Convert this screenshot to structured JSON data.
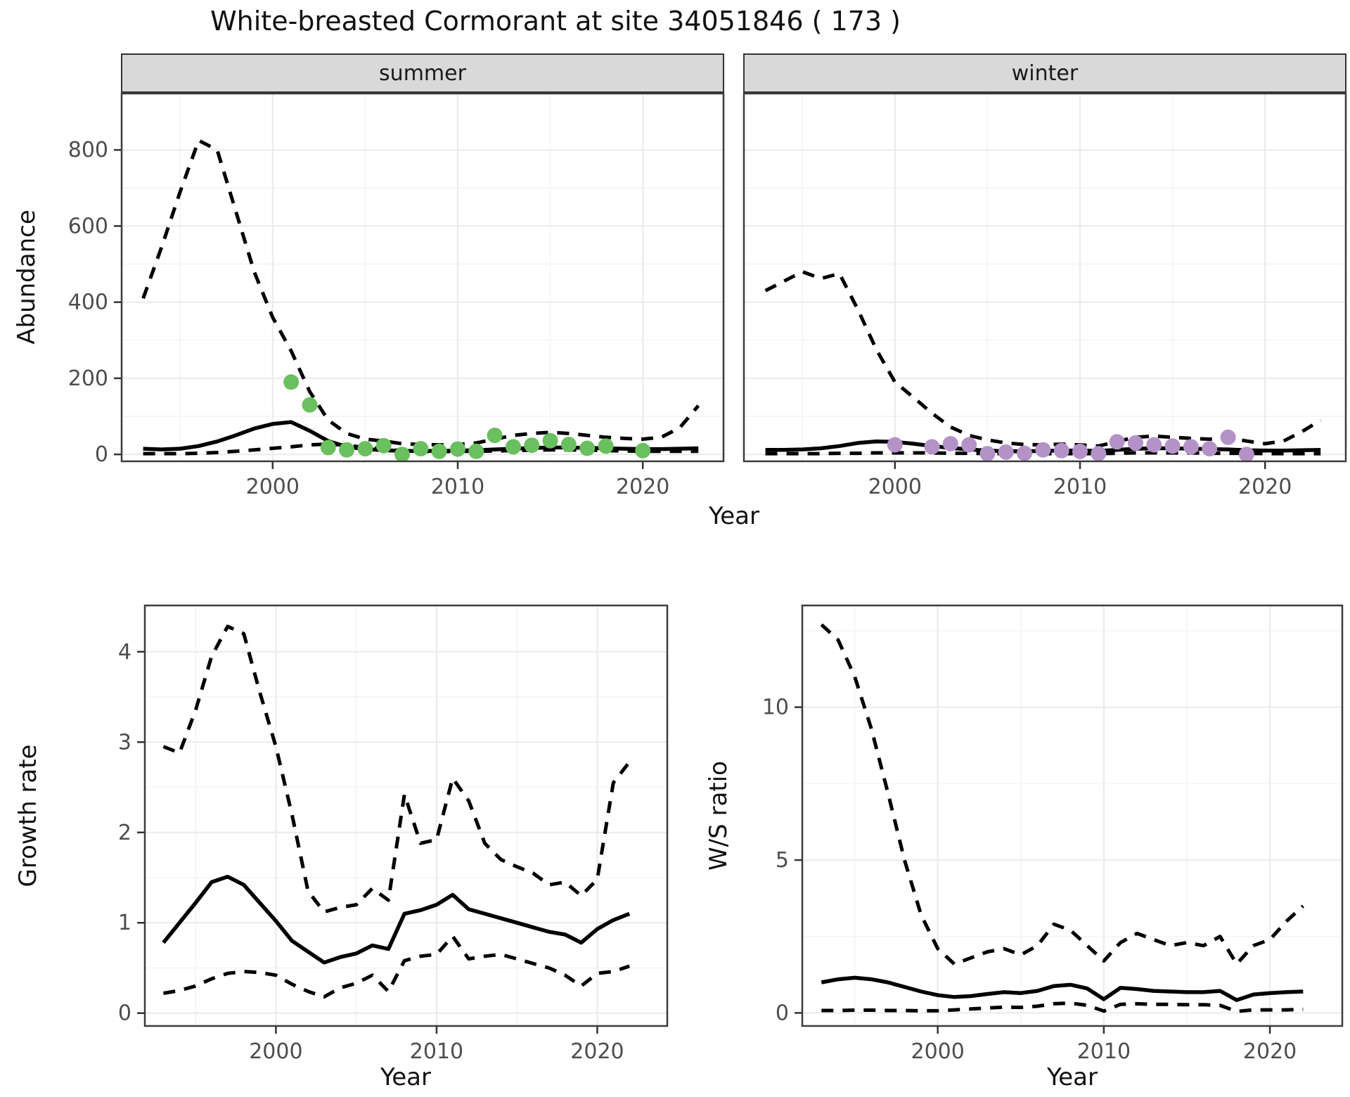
{
  "title": "White-breasted Cormorant at site 34051846 ( 173 )",
  "axis_labels": {
    "abundance": "Abundance",
    "year": "Year",
    "growth_rate": "Growth rate",
    "ws_ratio": "W/S ratio"
  },
  "facets": {
    "summer": "summer",
    "winter": "winter"
  },
  "colors": {
    "summer_points": "#6abf5e",
    "winter_points": "#b492c8",
    "line": "#000000",
    "strip_bg": "#d9d9d9",
    "grid_major": "#ebebeb",
    "grid_minor": "#f5f5f5",
    "panel_border": "#3c3c3c",
    "tick_mark": "#333333",
    "tick_text": "#4d4d4d"
  },
  "chart_data": {
    "type": "line",
    "title": "White-breasted Cormorant at site 34051846 ( 173 )",
    "panels": [
      {
        "id": "abundance_summer",
        "facet_label": "summer",
        "xlabel": "Year",
        "ylabel": "Abundance",
        "xlim": [
          1991.8,
          2024.4
        ],
        "ylim": [
          -20,
          950
        ],
        "x_ticks": [
          2000,
          2010,
          2020
        ],
        "x_minor": [
          1995,
          2005,
          2015
        ],
        "y_ticks": [
          0,
          200,
          400,
          600,
          800
        ],
        "y_minor": [
          100,
          300,
          500,
          700
        ],
        "show_y_tick_labels": true,
        "x": [
          1993,
          1994,
          1995,
          1996,
          1997,
          1998,
          1999,
          2000,
          2001,
          2002,
          2003,
          2004,
          2005,
          2006,
          2007,
          2008,
          2009,
          2010,
          2011,
          2012,
          2013,
          2014,
          2015,
          2016,
          2017,
          2018,
          2019,
          2020,
          2021,
          2022,
          2023
        ],
        "series": [
          {
            "name": "upper_ci",
            "style": "dashed",
            "values": [
              410,
              545,
              690,
              825,
              800,
              640,
              480,
              360,
              272,
              165,
              90,
              55,
              40,
              35,
              28,
              26,
              25,
              26,
              30,
              40,
              50,
              55,
              58,
              55,
              50,
              45,
              42,
              40,
              45,
              70,
              128
            ]
          },
          {
            "name": "median",
            "style": "solid",
            "values": [
              15,
              13,
              15,
              22,
              34,
              50,
              68,
              80,
              85,
              62,
              35,
              20,
              14,
              11,
              9,
              9,
              9,
              10,
              11,
              13,
              15,
              17,
              18,
              18,
              17,
              16,
              15,
              14,
              14,
              15,
              16
            ]
          },
          {
            "name": "lower_ci",
            "style": "dashed",
            "values": [
              2,
              2,
              2,
              3,
              5,
              8,
              12,
              16,
              20,
              25,
              27,
              24,
              18,
              14,
              10,
              8,
              7,
              8,
              8,
              9,
              10,
              11,
              12,
              12,
              11,
              10,
              9,
              8,
              8,
              8,
              8
            ]
          }
        ],
        "points": {
          "name": "observed_counts_summer",
          "color_key": "summer_points",
          "x": [
            2001,
            2002,
            2003,
            2004,
            2005,
            2006,
            2007,
            2008,
            2009,
            2010,
            2011,
            2012,
            2013,
            2014,
            2015,
            2016,
            2017,
            2018,
            2020
          ],
          "y": [
            190,
            130,
            18,
            12,
            15,
            23,
            0,
            15,
            8,
            14,
            8,
            50,
            20,
            24,
            36,
            26,
            16,
            22,
            10
          ]
        }
      },
      {
        "id": "abundance_winter",
        "facet_label": "winter",
        "xlabel": "Year",
        "ylabel": "Abundance",
        "xlim": [
          1991.8,
          2024.4
        ],
        "ylim": [
          -20,
          950
        ],
        "x_ticks": [
          2000,
          2010,
          2020
        ],
        "x_minor": [
          1995,
          2005,
          2015
        ],
        "y_ticks": [
          0,
          200,
          400,
          600,
          800
        ],
        "y_minor": [
          100,
          300,
          500,
          700
        ],
        "show_y_tick_labels": false,
        "x": [
          1993,
          1994,
          1995,
          1996,
          1997,
          1998,
          1999,
          2000,
          2001,
          2002,
          2003,
          2004,
          2005,
          2006,
          2007,
          2008,
          2009,
          2010,
          2011,
          2012,
          2013,
          2014,
          2015,
          2016,
          2017,
          2018,
          2019,
          2020,
          2021,
          2022,
          2023
        ],
        "series": [
          {
            "name": "upper_ci",
            "style": "dashed",
            "values": [
              430,
              455,
              480,
              462,
              475,
              380,
              275,
              190,
              150,
              108,
              72,
              50,
              38,
              30,
              26,
              25,
              27,
              25,
              22,
              34,
              45,
              48,
              45,
              42,
              40,
              44,
              35,
              28,
              35,
              60,
              90
            ]
          },
          {
            "name": "median",
            "style": "solid",
            "values": [
              12,
              12,
              13,
              16,
              22,
              30,
              34,
              33,
              28,
              22,
              17,
              13,
              10,
              8,
              8,
              9,
              10,
              10,
              9,
              12,
              15,
              16,
              16,
              15,
              14,
              13,
              11,
              10,
              10,
              11,
              12
            ]
          },
          {
            "name": "lower_ci",
            "style": "dashed",
            "values": [
              2,
              2,
              2,
              2,
              3,
              3,
              4,
              4,
              4,
              4,
              3,
              3,
              2,
              2,
              2,
              2,
              2,
              2,
              2,
              3,
              4,
              4,
              4,
              4,
              3,
              3,
              3,
              2,
              2,
              2,
              2
            ]
          }
        ],
        "points": {
          "name": "observed_counts_winter",
          "color_key": "winter_points",
          "x": [
            2000,
            2002,
            2003,
            2004,
            2005,
            2006,
            2007,
            2008,
            2009,
            2010,
            2011,
            2012,
            2013,
            2014,
            2015,
            2016,
            2017,
            2018,
            2019
          ],
          "y": [
            25,
            20,
            28,
            25,
            2,
            6,
            3,
            12,
            10,
            8,
            2,
            33,
            30,
            25,
            22,
            20,
            15,
            45,
            0
          ]
        }
      },
      {
        "id": "growth_rate",
        "facet_label": "",
        "xlabel": "Year",
        "ylabel": "Growth rate",
        "xlim": [
          1991.8,
          2024.4
        ],
        "ylim": [
          -0.15,
          4.52
        ],
        "x_ticks": [
          2000,
          2010,
          2020
        ],
        "x_minor": [
          1995,
          2005,
          2015
        ],
        "y_ticks": [
          0,
          1,
          2,
          3,
          4
        ],
        "y_minor": [
          0.5,
          1.5,
          2.5,
          3.5
        ],
        "show_y_tick_labels": true,
        "x": [
          1993,
          1994,
          1995,
          1996,
          1997,
          1998,
          1999,
          2000,
          2001,
          2002,
          2003,
          2004,
          2005,
          2006,
          2007,
          2008,
          2009,
          2010,
          2011,
          2012,
          2013,
          2014,
          2015,
          2016,
          2017,
          2018,
          2019,
          2020,
          2021,
          2022
        ],
        "series": [
          {
            "name": "upper_ci",
            "style": "dashed",
            "values": [
              2.95,
              2.88,
              3.35,
              3.95,
              4.28,
              4.2,
              3.55,
              2.95,
              2.2,
              1.35,
              1.12,
              1.17,
              1.2,
              1.38,
              1.25,
              2.42,
              1.88,
              1.92,
              2.6,
              2.35,
              1.88,
              1.7,
              1.62,
              1.55,
              1.42,
              1.45,
              1.3,
              1.48,
              2.55,
              2.78
            ]
          },
          {
            "name": "median",
            "style": "solid",
            "values": [
              0.78,
              1.0,
              1.22,
              1.45,
              1.51,
              1.42,
              1.22,
              1.02,
              0.8,
              0.68,
              0.56,
              0.62,
              0.66,
              0.75,
              0.71,
              1.1,
              1.14,
              1.2,
              1.31,
              1.15,
              1.1,
              1.05,
              1.0,
              0.95,
              0.9,
              0.87,
              0.78,
              0.93,
              1.03,
              1.1
            ]
          },
          {
            "name": "lower_ci",
            "style": "dashed",
            "values": [
              0.22,
              0.25,
              0.3,
              0.38,
              0.44,
              0.46,
              0.45,
              0.42,
              0.32,
              0.24,
              0.18,
              0.28,
              0.33,
              0.42,
              0.24,
              0.58,
              0.63,
              0.65,
              0.85,
              0.6,
              0.63,
              0.65,
              0.6,
              0.55,
              0.5,
              0.42,
              0.3,
              0.44,
              0.46,
              0.52
            ]
          }
        ],
        "points": null
      },
      {
        "id": "ws_ratio",
        "facet_label": "",
        "xlabel": "Year",
        "ylabel": "W/S ratio",
        "xlim": [
          1991.8,
          2024.4
        ],
        "ylim": [
          -0.45,
          13.35
        ],
        "x_ticks": [
          2000,
          2010,
          2020
        ],
        "x_minor": [
          1995,
          2005,
          2015
        ],
        "y_ticks": [
          0,
          5,
          10
        ],
        "y_minor": [
          2.5,
          7.5,
          12.5
        ],
        "show_y_tick_labels": true,
        "x": [
          1993,
          1994,
          1995,
          1996,
          1997,
          1998,
          1999,
          2000,
          2001,
          2002,
          2003,
          2004,
          2005,
          2006,
          2007,
          2008,
          2009,
          2010,
          2011,
          2012,
          2013,
          2014,
          2015,
          2016,
          2017,
          2018,
          2019,
          2020,
          2021,
          2022
        ],
        "series": [
          {
            "name": "upper_ci",
            "style": "dashed",
            "values": [
              12.7,
              12.2,
              11.0,
              9.3,
              7.2,
              5.0,
              3.2,
              2.1,
              1.6,
              1.8,
              2.0,
              2.1,
              1.9,
              2.2,
              2.9,
              2.7,
              2.2,
              1.7,
              2.3,
              2.6,
              2.4,
              2.2,
              2.3,
              2.2,
              2.5,
              1.6,
              2.2,
              2.4,
              3.0,
              3.5
            ]
          },
          {
            "name": "median",
            "style": "solid",
            "values": [
              1.0,
              1.1,
              1.15,
              1.1,
              1.0,
              0.85,
              0.7,
              0.58,
              0.52,
              0.55,
              0.62,
              0.68,
              0.65,
              0.72,
              0.88,
              0.92,
              0.8,
              0.45,
              0.82,
              0.78,
              0.72,
              0.7,
              0.68,
              0.68,
              0.72,
              0.42,
              0.6,
              0.65,
              0.68,
              0.7
            ]
          },
          {
            "name": "lower_ci",
            "style": "dashed",
            "values": [
              0.08,
              0.08,
              0.09,
              0.09,
              0.08,
              0.08,
              0.07,
              0.07,
              0.1,
              0.13,
              0.16,
              0.19,
              0.18,
              0.22,
              0.3,
              0.32,
              0.25,
              0.06,
              0.28,
              0.3,
              0.28,
              0.28,
              0.27,
              0.27,
              0.25,
              0.05,
              0.1,
              0.1,
              0.1,
              0.12
            ]
          }
        ],
        "points": null
      }
    ]
  }
}
